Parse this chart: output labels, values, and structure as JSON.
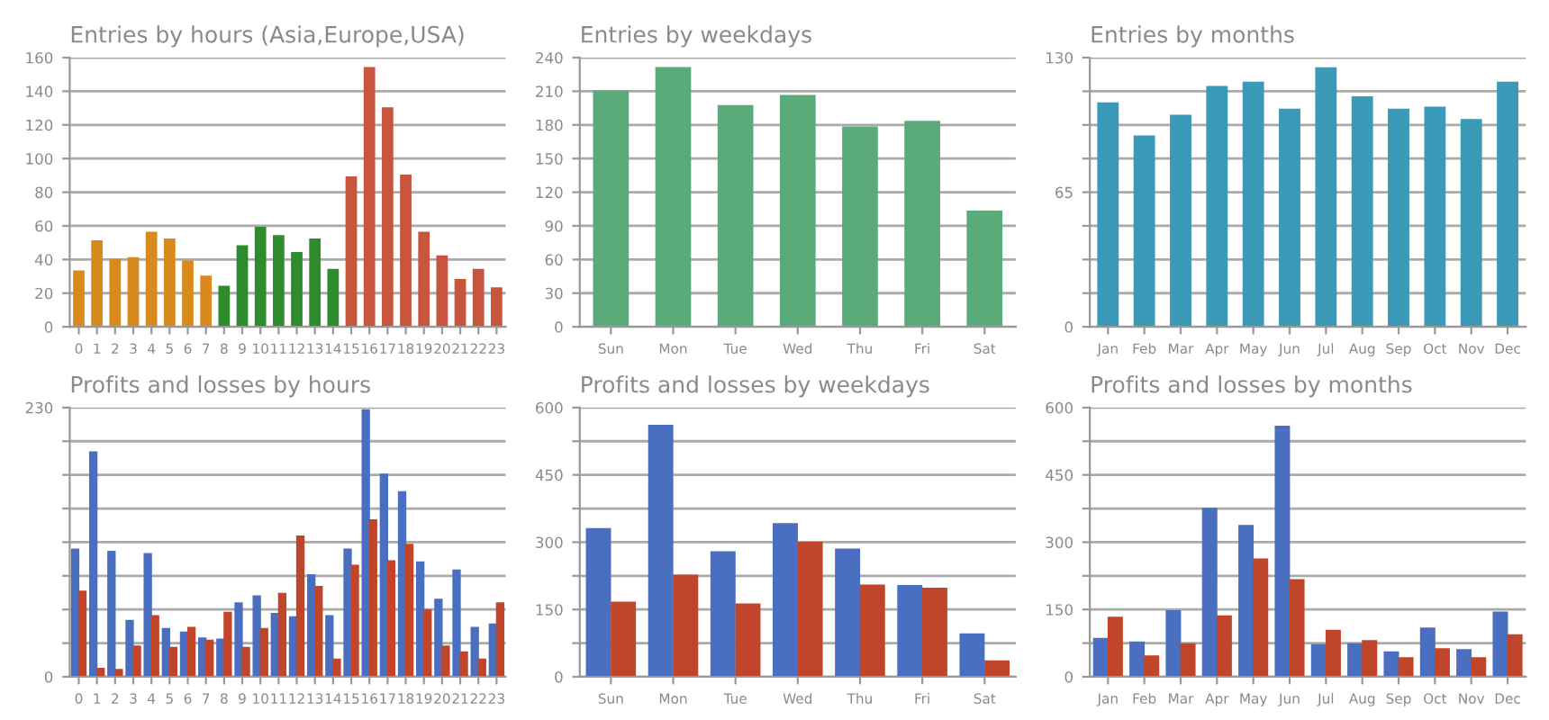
{
  "chart_data": [
    {
      "type": "bar",
      "title": "Entries by hours (Asia,Europe,USA)",
      "categories": [
        "0",
        "1",
        "2",
        "3",
        "4",
        "5",
        "6",
        "7",
        "8",
        "9",
        "10",
        "11",
        "12",
        "13",
        "14",
        "15",
        "16",
        "17",
        "18",
        "19",
        "20",
        "21",
        "22",
        "23"
      ],
      "values": [
        33,
        51,
        40,
        41,
        56,
        52,
        39,
        30,
        24,
        48,
        59,
        54,
        44,
        52,
        34,
        89,
        154,
        130,
        90,
        56,
        42,
        28,
        34,
        23
      ],
      "colors": [
        "#d88a1c",
        "#d88a1c",
        "#d88a1c",
        "#d88a1c",
        "#d88a1c",
        "#d88a1c",
        "#d88a1c",
        "#d88a1c",
        "#2e8b2e",
        "#2e8b2e",
        "#2e8b2e",
        "#2e8b2e",
        "#2e8b2e",
        "#2e8b2e",
        "#2e8b2e",
        "#c8553d",
        "#c8553d",
        "#c8553d",
        "#c8553d",
        "#c8553d",
        "#c8553d",
        "#c8553d",
        "#c8553d",
        "#c8553d"
      ],
      "ylim": [
        0,
        160
      ],
      "yticks": [
        0,
        20,
        40,
        60,
        80,
        100,
        120,
        140,
        160
      ],
      "grid": "y"
    },
    {
      "type": "bar",
      "title": "Entries by weekdays",
      "categories": [
        "Sun",
        "Mon",
        "Tue",
        "Wed",
        "Thu",
        "Fri",
        "Sat"
      ],
      "values": [
        210,
        231,
        197,
        206,
        178,
        183,
        103
      ],
      "color": "#5aaa7a",
      "ylim": [
        0,
        240
      ],
      "yticks": [
        0,
        30,
        60,
        90,
        120,
        150,
        180,
        210,
        240
      ],
      "grid": "y"
    },
    {
      "type": "bar",
      "title": "Entries by months",
      "categories": [
        "Jan",
        "Feb",
        "Mar",
        "Apr",
        "May",
        "Jun",
        "Jul",
        "Aug",
        "Sep",
        "Oct",
        "Nov",
        "Dec"
      ],
      "values": [
        108,
        92,
        102,
        116,
        118,
        105,
        125,
        111,
        105,
        106,
        100,
        118
      ],
      "color": "#3a9ab8",
      "ylim": [
        0,
        130
      ],
      "yticks": [
        0,
        {
          "value": 16.25,
          "label": null
        },
        {
          "value": 32.5,
          "label": null
        },
        {
          "value": 48.75,
          "label": null
        },
        65,
        {
          "value": 81.25,
          "label": null
        },
        {
          "value": 97.5,
          "label": null
        },
        {
          "value": 113.75,
          "label": null
        },
        130
      ],
      "grid": "y"
    },
    {
      "type": "bar",
      "title": "Profits and losses by hours",
      "categories": [
        "0",
        "1",
        "2",
        "3",
        "4",
        "5",
        "6",
        "7",
        "8",
        "9",
        "10",
        "11",
        "12",
        "13",
        "14",
        "15",
        "16",
        "17",
        "18",
        "19",
        "20",
        "21",
        "22",
        "23"
      ],
      "series": [
        {
          "color": "#4a6fc0",
          "values": [
            109,
            192,
            107,
            48,
            105,
            41,
            38,
            33,
            32,
            63,
            69,
            54,
            51,
            87,
            52,
            109,
            228,
            173,
            158,
            98,
            66,
            91,
            42,
            45
          ]
        },
        {
          "color": "#c0452a",
          "values": [
            73,
            7,
            6,
            26,
            52,
            25,
            42,
            31,
            55,
            25,
            41,
            71,
            120,
            77,
            15,
            95,
            134,
            99,
            113,
            57,
            26,
            21,
            15,
            63
          ]
        }
      ],
      "ylim": [
        0,
        230
      ],
      "yticks": [
        0,
        {
          "value": 28.75,
          "label": null
        },
        {
          "value": 57.5,
          "label": null
        },
        {
          "value": 86.25,
          "label": null
        },
        {
          "value": 115,
          "label": null
        },
        {
          "value": 143.75,
          "label": null
        },
        {
          "value": 172.5,
          "label": null
        },
        {
          "value": 201.25,
          "label": null
        },
        230
      ],
      "grid": "y"
    },
    {
      "type": "bar",
      "title": "Profits and losses by weekdays",
      "categories": [
        "Sun",
        "Mon",
        "Tue",
        "Wed",
        "Thu",
        "Fri",
        "Sat"
      ],
      "series": [
        {
          "color": "#4a6fc0",
          "values": [
            330,
            560,
            278,
            341,
            284,
            203,
            95
          ]
        },
        {
          "color": "#c0452a",
          "values": [
            166,
            226,
            162,
            299,
            204,
            197,
            35
          ]
        }
      ],
      "ylim": [
        0,
        600
      ],
      "yticks": [
        0,
        {
          "value": 75,
          "label": null
        },
        150,
        {
          "value": 225,
          "label": null
        },
        300,
        {
          "value": 375,
          "label": null
        },
        450,
        {
          "value": 525,
          "label": null
        },
        600
      ],
      "grid": "y"
    },
    {
      "type": "bar",
      "title": "Profits and losses by months",
      "categories": [
        "Jan",
        "Feb",
        "Mar",
        "Apr",
        "May",
        "Jun",
        "Jul",
        "Aug",
        "Sep",
        "Oct",
        "Nov",
        "Dec"
      ],
      "series": [
        {
          "color": "#4a6fc0",
          "values": [
            85,
            77,
            147,
            375,
            337,
            558,
            71,
            73,
            55,
            108,
            60,
            144
          ]
        },
        {
          "color": "#c0452a",
          "values": [
            132,
            46,
            73,
            135,
            262,
            216,
            103,
            80,
            42,
            62,
            42,
            93
          ]
        }
      ],
      "ylim": [
        0,
        600
      ],
      "yticks": [
        0,
        {
          "value": 75,
          "label": null
        },
        150,
        {
          "value": 225,
          "label": null
        },
        300,
        {
          "value": 375,
          "label": null
        },
        450,
        {
          "value": 525,
          "label": null
        },
        600
      ],
      "grid": "y"
    }
  ]
}
